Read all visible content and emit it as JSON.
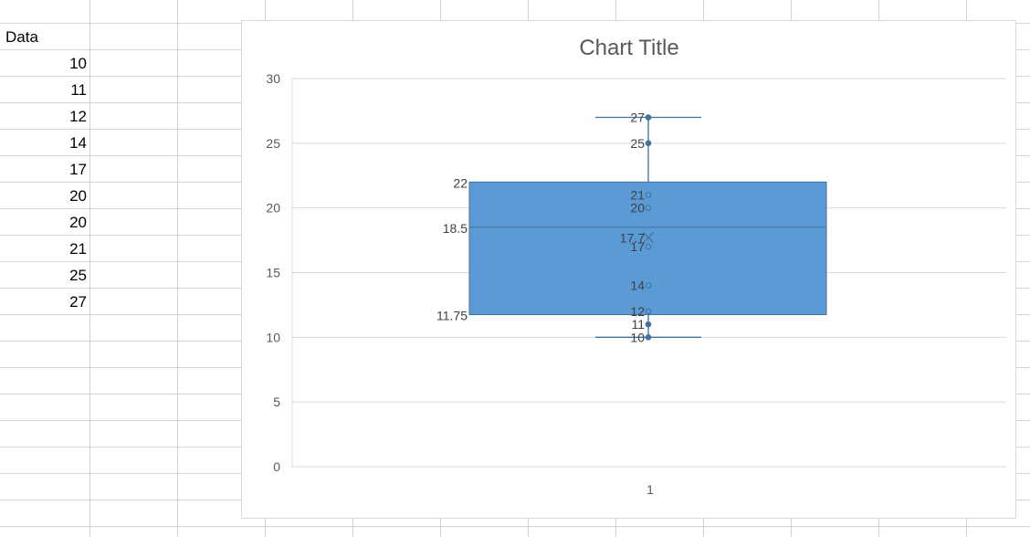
{
  "sheet": {
    "header": "Data",
    "values": [
      "10",
      "11",
      "12",
      "14",
      "17",
      "20",
      "20",
      "21",
      "25",
      "27"
    ]
  },
  "chart_data": {
    "type": "box",
    "title": "Chart Title",
    "categories": [
      "1"
    ],
    "ylim": [
      0,
      30
    ],
    "yticks": [
      0,
      5,
      10,
      15,
      20,
      25,
      30
    ],
    "grid": true,
    "series": [
      {
        "values": [
          10,
          11,
          12,
          14,
          17,
          20,
          20,
          21,
          25,
          27
        ],
        "min": 10,
        "q1": 11.75,
        "median": 18.5,
        "q3": 22,
        "max": 27,
        "mean": 17.7,
        "points": [
          {
            "value": 10,
            "label": "10"
          },
          {
            "value": 11,
            "label": "11"
          },
          {
            "value": 12,
            "label": "12"
          },
          {
            "value": 14,
            "label": "14"
          },
          {
            "value": 17,
            "label": "17"
          },
          {
            "value": 20,
            "label": "20"
          },
          {
            "value": 21,
            "label": "21"
          },
          {
            "value": 25,
            "label": "25"
          },
          {
            "value": 27,
            "label": "27"
          }
        ],
        "stat_labels": {
          "q1": "11.75",
          "median": "18.5",
          "q3": "22",
          "mean": "17.7"
        }
      }
    ],
    "colors": {
      "box": "#5b9bd5",
      "line": "#41719c",
      "grid": "#d9d9d9",
      "text": "#595959"
    }
  }
}
